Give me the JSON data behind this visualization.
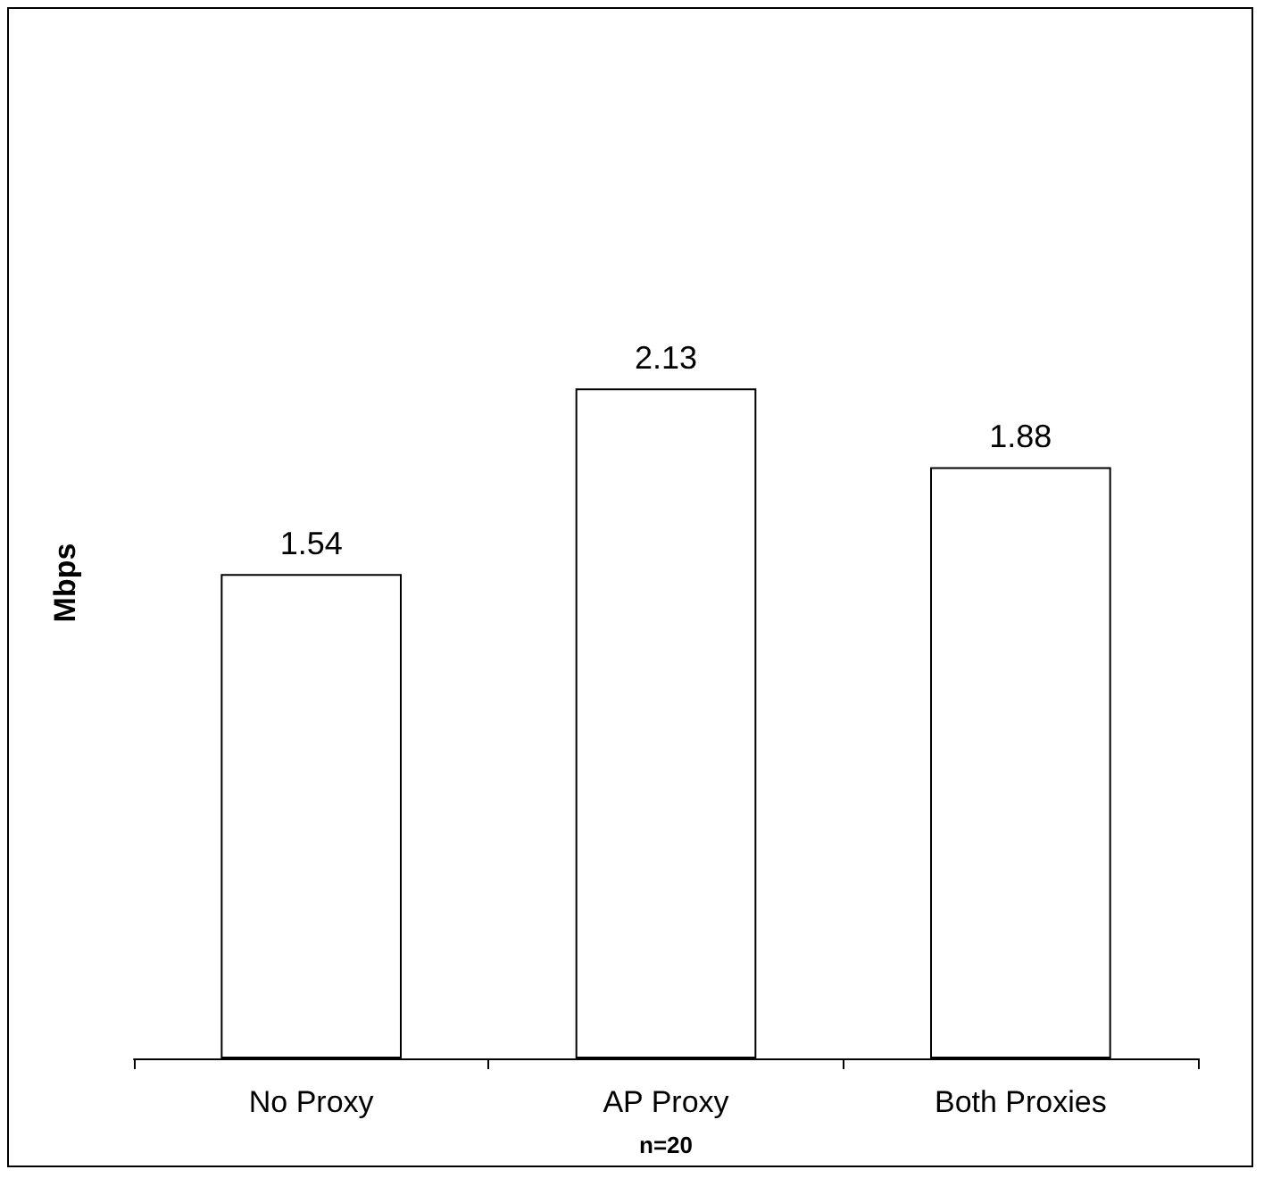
{
  "chart_data": {
    "type": "bar",
    "categories": [
      "No Proxy",
      "AP Proxy",
      "Both Proxies"
    ],
    "values": [
      1.54,
      2.13,
      1.88
    ],
    "color": "#ffffff",
    "xlabel": "n=20",
    "ylabel": "Mbps",
    "data_labels": true
  }
}
